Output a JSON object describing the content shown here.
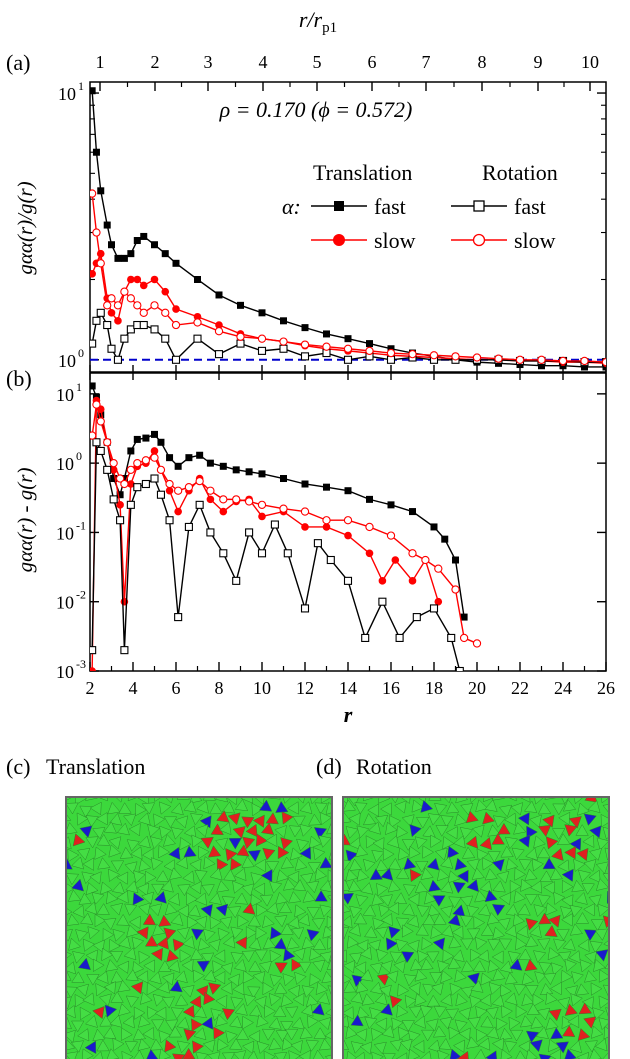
{
  "panel_labels": {
    "a": "(a)",
    "b": "(b)",
    "c": "(c)",
    "d": "(d)"
  },
  "top_axis": {
    "label_main": "r/r",
    "label_sub": "p1",
    "ticks": [
      "1",
      "2",
      "3",
      "4",
      "5",
      "6",
      "7",
      "8",
      "9",
      "10"
    ]
  },
  "bottom_axis": {
    "label": "r",
    "ticks": [
      "2",
      "4",
      "6",
      "8",
      "10",
      "12",
      "14",
      "16",
      "18",
      "20",
      "22",
      "24",
      "26"
    ]
  },
  "panel_a": {
    "annotation": "ρ = 0.170 (ϕ = 0.572)",
    "ylabel": "gαα(r)/g(r)",
    "yticks": [
      "10",
      "10"
    ],
    "ytick_exp": [
      "1",
      "0"
    ],
    "legend": {
      "col_translation": "Translation",
      "col_rotation": "Rotation",
      "alpha_label": "α:",
      "fast": "fast",
      "slow": "slow"
    }
  },
  "panel_b": {
    "ylabel": "gαα(r) - g(r)",
    "ytick_exp": [
      "1",
      "0",
      "-1",
      "-2",
      "-3"
    ]
  },
  "snapshots": {
    "c_title": "Translation",
    "d_title": "Rotation"
  },
  "colors": {
    "fast_trans": "#000000",
    "slow_trans": "#ff0000",
    "fast_rot": "#000000",
    "slow_rot": "#ff0000",
    "ref_line": "#0000cc",
    "particle_green": "#44dd44",
    "particle_red": "#e02020",
    "particle_blue": "#1a1acc"
  },
  "chart_data": [
    {
      "type": "line",
      "panel": "a",
      "ylabel": "gαα(r)/g(r)",
      "y_scale": "log",
      "ylim": [
        0.9,
        11
      ],
      "xlim": [
        2,
        26
      ],
      "reference_line": {
        "y": 1.0,
        "style": "dashed"
      },
      "series": [
        {
          "name": "Translation fast",
          "marker": "filled-square",
          "x": [
            2.1,
            2.3,
            2.5,
            2.8,
            3.0,
            3.3,
            3.6,
            3.9,
            4.2,
            4.5,
            5.0,
            5.5,
            6,
            7,
            8,
            9,
            10,
            11,
            12,
            13,
            14,
            15,
            16,
            17,
            18,
            19,
            20,
            21,
            22,
            23,
            24,
            25,
            26
          ],
          "y": [
            10.2,
            6.0,
            4.3,
            3.2,
            2.7,
            2.4,
            2.4,
            2.5,
            2.8,
            2.9,
            2.7,
            2.5,
            2.3,
            2.0,
            1.75,
            1.6,
            1.5,
            1.4,
            1.32,
            1.25,
            1.2,
            1.15,
            1.1,
            1.06,
            1.03,
            1.0,
            0.98,
            0.97,
            0.96,
            0.95,
            0.95,
            0.94,
            0.94
          ]
        },
        {
          "name": "Translation slow",
          "marker": "filled-circle",
          "x": [
            2.1,
            2.3,
            2.5,
            2.8,
            3.0,
            3.3,
            3.6,
            3.9,
            4.2,
            4.5,
            5.0,
            5.5,
            6,
            7,
            8,
            9,
            10,
            11,
            12,
            13,
            14,
            15,
            16,
            17,
            18,
            19,
            20,
            21,
            22,
            23,
            24,
            25,
            26
          ],
          "y": [
            2.1,
            2.3,
            2.5,
            1.7,
            1.5,
            1.4,
            1.8,
            2.0,
            2.0,
            1.9,
            2.0,
            1.8,
            1.55,
            1.45,
            1.35,
            1.25,
            1.2,
            1.17,
            1.13,
            1.1,
            1.08,
            1.06,
            1.04,
            1.03,
            1.02,
            1.01,
            1.0,
            1.0,
            0.99,
            0.99,
            0.98,
            0.98,
            0.97
          ]
        },
        {
          "name": "Rotation fast",
          "marker": "open-square",
          "x": [
            2.1,
            2.3,
            2.5,
            2.8,
            3.0,
            3.3,
            3.6,
            3.9,
            4.2,
            4.5,
            5.0,
            5.5,
            6,
            7,
            8,
            9,
            10,
            11,
            12,
            13,
            14,
            15,
            16,
            17,
            18,
            19,
            20,
            21,
            22,
            23,
            24,
            25,
            26
          ],
          "y": [
            1.15,
            1.4,
            1.5,
            1.35,
            1.1,
            1.0,
            1.2,
            1.3,
            1.35,
            1.35,
            1.3,
            1.2,
            1.0,
            1.2,
            1.05,
            1.15,
            1.08,
            1.1,
            1.03,
            1.06,
            1.0,
            1.03,
            1.0,
            1.02,
            1.0,
            1.0,
            1.0,
            1.0,
            0.99,
            0.99,
            0.99,
            0.98,
            0.98
          ]
        },
        {
          "name": "Rotation slow",
          "marker": "open-circle",
          "x": [
            2.1,
            2.3,
            2.5,
            2.8,
            3.0,
            3.3,
            3.6,
            3.9,
            4.2,
            4.5,
            5.0,
            5.5,
            6,
            7,
            8,
            9,
            10,
            11,
            12,
            13,
            14,
            15,
            16,
            17,
            18,
            19,
            20,
            21,
            22,
            23,
            24,
            25,
            26
          ],
          "y": [
            4.2,
            3.0,
            2.3,
            1.6,
            1.7,
            1.6,
            1.8,
            1.7,
            1.6,
            1.5,
            1.6,
            1.5,
            1.35,
            1.38,
            1.28,
            1.22,
            1.2,
            1.17,
            1.14,
            1.12,
            1.1,
            1.08,
            1.06,
            1.05,
            1.04,
            1.03,
            1.02,
            1.01,
            1.0,
            1.0,
            0.99,
            0.99,
            0.98
          ]
        }
      ]
    },
    {
      "type": "line",
      "panel": "b",
      "ylabel": "gαα(r) - g(r)",
      "y_scale": "log",
      "ylim": [
        0.001,
        20
      ],
      "xlim": [
        2,
        26
      ],
      "series": [
        {
          "name": "Translation fast",
          "marker": "filled-square",
          "x": [
            2.1,
            2.3,
            2.5,
            2.8,
            3.1,
            3.4,
            3.6,
            3.9,
            4.2,
            4.6,
            5.0,
            5.3,
            5.7,
            6.1,
            6.6,
            7.1,
            7.6,
            8.2,
            8.8,
            9.4,
            10,
            11,
            12,
            13,
            14,
            15,
            16,
            17,
            18,
            18.5,
            19,
            19.4
          ],
          "y": [
            13,
            9,
            5,
            2,
            0.6,
            0.35,
            0.6,
            1.5,
            2.2,
            2.3,
            2.6,
            2.0,
            1.2,
            0.9,
            1.2,
            1.3,
            1.0,
            0.9,
            0.8,
            0.75,
            0.7,
            0.6,
            0.5,
            0.45,
            0.4,
            0.3,
            0.25,
            0.2,
            0.12,
            0.08,
            0.04,
            0.006
          ]
        },
        {
          "name": "Translation slow",
          "marker": "filled-circle",
          "x": [
            2.1,
            2.3,
            2.5,
            2.8,
            3.1,
            3.4,
            3.6,
            3.9,
            4.2,
            4.6,
            5.0,
            5.3,
            5.7,
            6.1,
            6.6,
            7.1,
            7.6,
            8.2,
            8.8,
            9.4,
            10,
            11,
            12,
            13,
            14,
            15,
            15.6,
            16.2,
            17,
            17.6,
            18.2
          ],
          "y": [
            0.001,
            8,
            6,
            2,
            0.8,
            0.25,
            0.01,
            0.5,
            0.9,
            1.0,
            1.5,
            0.8,
            0.4,
            0.2,
            0.4,
            0.6,
            0.3,
            0.2,
            0.28,
            0.3,
            0.17,
            0.2,
            0.12,
            0.12,
            0.09,
            0.05,
            0.02,
            0.04,
            0.02,
            0.04,
            0.01
          ]
        },
        {
          "name": "Rotation fast",
          "marker": "open-square",
          "x": [
            2.1,
            2.3,
            2.5,
            2.8,
            3.1,
            3.4,
            3.6,
            3.9,
            4.2,
            4.6,
            5.0,
            5.3,
            5.7,
            6.1,
            6.6,
            7.1,
            7.6,
            8.2,
            8.8,
            9.4,
            10,
            10.6,
            11.2,
            12,
            12.6,
            13.2,
            14,
            14.8,
            15.6,
            16.4,
            17.2,
            18,
            18.8,
            19.2
          ],
          "y": [
            0.002,
            2,
            1.5,
            0.8,
            0.3,
            0.15,
            0.002,
            0.25,
            0.45,
            0.5,
            0.6,
            0.35,
            0.15,
            0.006,
            0.12,
            0.25,
            0.1,
            0.05,
            0.02,
            0.1,
            0.05,
            0.13,
            0.05,
            0.008,
            0.07,
            0.04,
            0.02,
            0.003,
            0.01,
            0.003,
            0.006,
            0.008,
            0.003,
            0.001
          ]
        },
        {
          "name": "Rotation slow",
          "marker": "open-circle",
          "x": [
            2.1,
            2.3,
            2.5,
            2.8,
            3.1,
            3.4,
            3.6,
            3.9,
            4.2,
            4.6,
            5.0,
            5.3,
            5.7,
            6.1,
            6.6,
            7.1,
            7.6,
            8.2,
            8.8,
            9.4,
            10,
            11,
            12,
            13,
            14,
            15,
            16,
            17,
            17.6,
            18.2,
            19,
            19.4,
            20
          ],
          "y": [
            2.5,
            7,
            4,
            2,
            1.0,
            0.6,
            0.5,
            0.8,
            1.0,
            1.1,
            1.2,
            0.8,
            0.5,
            0.4,
            0.45,
            0.55,
            0.4,
            0.3,
            0.3,
            0.28,
            0.25,
            0.22,
            0.2,
            0.15,
            0.15,
            0.12,
            0.09,
            0.05,
            0.04,
            0.03,
            0.015,
            0.003,
            0.0025
          ]
        }
      ]
    }
  ]
}
